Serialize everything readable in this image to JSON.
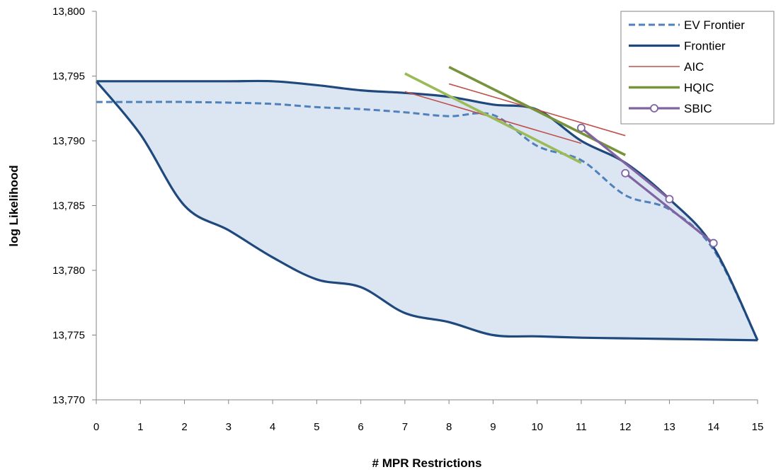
{
  "chart_data": {
    "type": "line",
    "title": "",
    "xlabel": "# MPR Restrictions",
    "ylabel": "log Likelihood",
    "xlim": [
      0,
      15
    ],
    "ylim": [
      13770,
      13800
    ],
    "x_ticks": [
      0,
      1,
      2,
      3,
      4,
      5,
      6,
      7,
      8,
      9,
      10,
      11,
      12,
      13,
      14,
      15
    ],
    "y_ticks": [
      13770,
      13775,
      13780,
      13785,
      13790,
      13795,
      13800
    ],
    "y_tick_labels": [
      "13,770",
      "13,775",
      "13,780",
      "13,785",
      "13,790",
      "13,795",
      "13,800"
    ],
    "grid": false,
    "legend_position": "top-right",
    "colors": {
      "ev_frontier": "#4f81bd",
      "frontier": "#1f497d",
      "aic": "#c0504d",
      "hqic": "#77933c",
      "hqic_light": "#9bbb59",
      "sbic": "#8064a2",
      "fill": "#dce6f2"
    },
    "envelope_upper": {
      "x": [
        0,
        1,
        2,
        3,
        4,
        5,
        6,
        7,
        8,
        9,
        10,
        11,
        12,
        13,
        14,
        15
      ],
      "y": [
        13794.6,
        13794.6,
        13794.6,
        13794.6,
        13794.6,
        13794.3,
        13793.9,
        13793.7,
        13793.4,
        13792.8,
        13792.4,
        13790.0,
        13788.3,
        13785.5,
        13781.8,
        13774.6
      ]
    },
    "envelope_lower": {
      "x": [
        0,
        1,
        2,
        3,
        4,
        5,
        6,
        7,
        8,
        9,
        10,
        11,
        12,
        13,
        14,
        15
      ],
      "y": [
        13794.6,
        13790.5,
        13785.0,
        13783.1,
        13781.0,
        13779.3,
        13778.7,
        13776.7,
        13776.0,
        13775.0,
        13774.9,
        13774.8,
        13774.75,
        13774.7,
        13774.65,
        13774.6
      ]
    },
    "series": [
      {
        "name": "EV Frontier",
        "style": "dashed",
        "x": [
          0,
          1,
          2,
          3,
          4,
          5,
          6,
          7,
          8,
          9,
          10,
          11,
          12,
          13,
          14,
          15
        ],
        "y": [
          13793.0,
          13793.0,
          13793.0,
          13792.95,
          13792.85,
          13792.6,
          13792.45,
          13792.2,
          13791.9,
          13792.0,
          13789.6,
          13788.5,
          13785.8,
          13784.7,
          13781.6,
          13774.6
        ]
      },
      {
        "name": "Frontier",
        "style": "solid",
        "x": [
          0,
          1,
          2,
          3,
          4,
          5,
          6,
          7,
          8,
          9,
          10,
          11,
          12,
          13,
          14,
          15
        ],
        "y": [
          13794.6,
          13794.6,
          13794.6,
          13794.6,
          13794.6,
          13794.3,
          13793.9,
          13793.7,
          13793.4,
          13792.8,
          13792.4,
          13790.0,
          13788.3,
          13785.5,
          13781.8,
          13774.6
        ]
      },
      {
        "name": "AIC",
        "style": "thin",
        "segments": [
          {
            "x": [
              7,
              11
            ],
            "y": [
              13793.8,
              13789.8
            ]
          },
          {
            "x": [
              8,
              12
            ],
            "y": [
              13794.4,
              13790.4
            ]
          }
        ]
      },
      {
        "name": "HQIC",
        "style": "thick",
        "segments": [
          {
            "x": [
              8,
              12
            ],
            "y": [
              13795.7,
              13788.9
            ]
          },
          {
            "x": [
              7,
              11
            ],
            "y": [
              13795.2,
              13788.3
            ],
            "light": true
          }
        ]
      },
      {
        "name": "SBIC",
        "style": "marker",
        "segments": [
          {
            "x": [
              11,
              13
            ],
            "y": [
              13791.0,
              13785.5
            ]
          },
          {
            "x": [
              12,
              14
            ],
            "y": [
              13787.5,
              13782.1
            ]
          }
        ]
      }
    ]
  }
}
